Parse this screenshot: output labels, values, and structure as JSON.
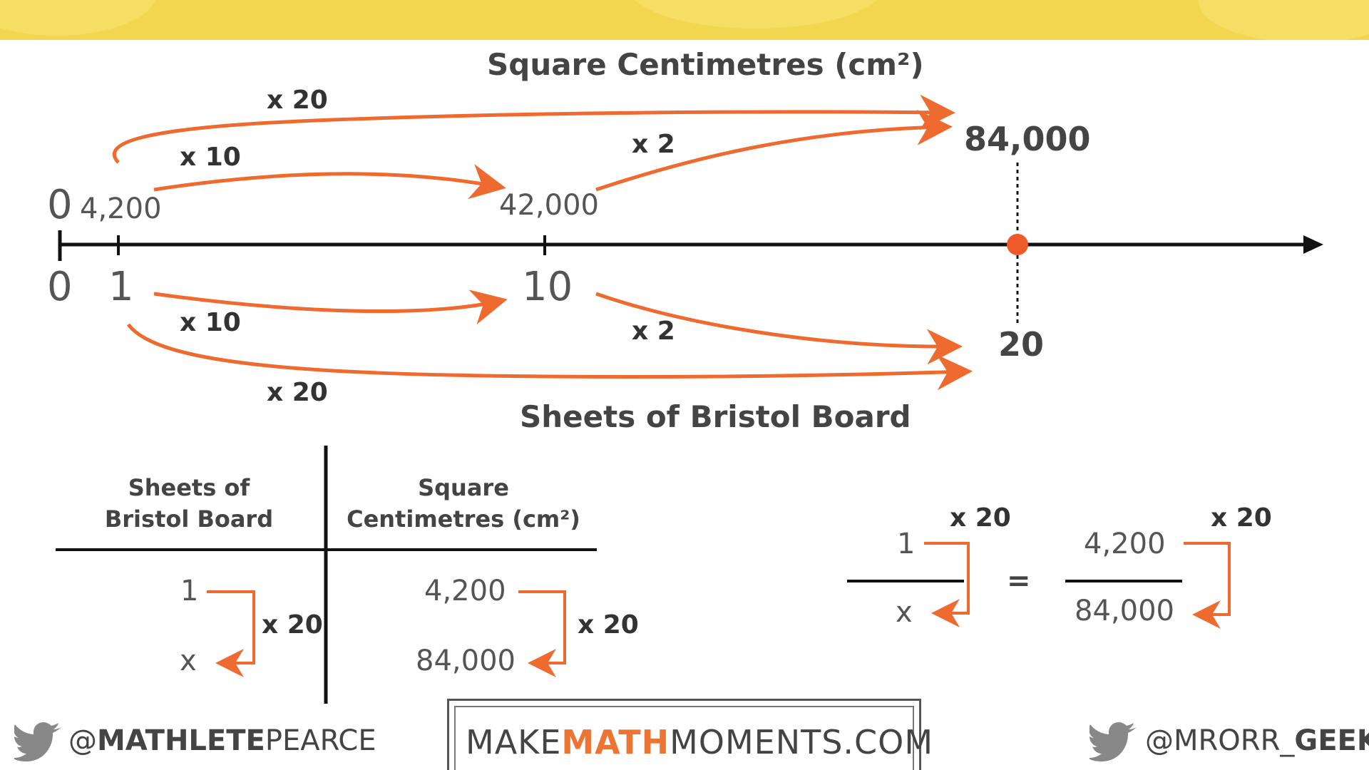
{
  "diagram": {
    "top_axis_title": "Square Centimetres (cm²)",
    "bottom_axis_title": "Sheets of Bristol Board",
    "top_values": {
      "zero": "0",
      "a": "4,200",
      "b": "42,000",
      "target": "84,000"
    },
    "bottom_values": {
      "zero": "0",
      "a": "1",
      "b": "10",
      "target": "20"
    },
    "top_ops": {
      "x20": "x 20",
      "x10": "x 10",
      "x2": "x 2"
    },
    "bottom_ops": {
      "x10": "x 10",
      "x2": "x 2",
      "x20": "x 20"
    },
    "colors": {
      "arrow": "#ee6a2e",
      "banner": "#f3d64f",
      "axis": "#111111"
    }
  },
  "table": {
    "col1_header": [
      "Sheets of",
      "Bristol Board"
    ],
    "col2_header": [
      "Square",
      "Centimetres (cm²)"
    ],
    "col1_values": [
      "1",
      "x"
    ],
    "col2_values": [
      "4,200",
      "84,000"
    ],
    "col1_op": "x 20",
    "col2_op": "x 20"
  },
  "proportion": {
    "left_num": "1",
    "left_den": "x",
    "equals": "=",
    "right_num": "4,200",
    "right_den": "84,000",
    "left_op": "x 20",
    "right_op": "x 20"
  },
  "footer": {
    "left_handle_prefix": "@",
    "left_handle_bold": "MATHLETE",
    "left_handle_rest": "PEARCE",
    "brand_pre": "MAKE",
    "brand_mid": "MATH",
    "brand_post": "MOMENTS.COM",
    "right_handle_prefix": "@MRORR_",
    "right_handle_bold": "GEEK",
    "icons": [
      "twitter-bird-icon",
      "twitter-bird-icon"
    ]
  }
}
